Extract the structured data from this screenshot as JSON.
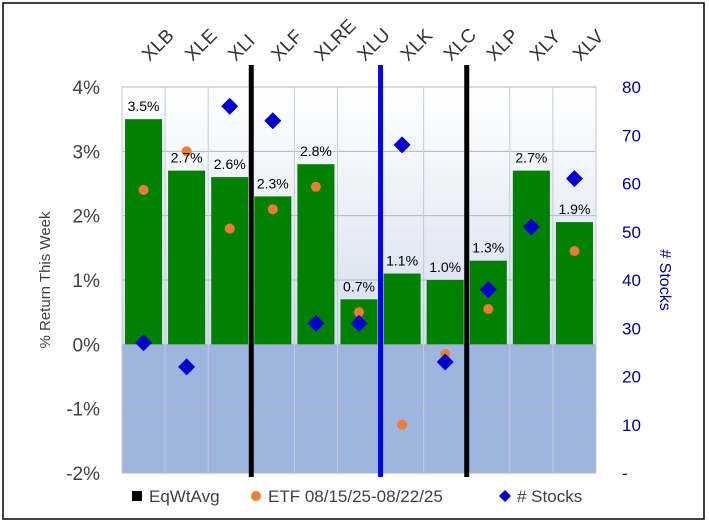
{
  "chart_data": {
    "type": "bar",
    "categories": [
      "XLB",
      "XLE",
      "XLI",
      "XLF",
      "XLRE",
      "XLU",
      "XLK",
      "XLC",
      "XLP",
      "XLY",
      "XLV"
    ],
    "series": [
      {
        "name": "EqWtAvg",
        "kind": "bar",
        "axis": "left",
        "values": [
          3.5,
          2.7,
          2.6,
          2.3,
          2.8,
          0.7,
          1.1,
          1.0,
          1.3,
          2.7,
          1.9
        ],
        "labels": [
          "3.5%",
          "2.7%",
          "2.6%",
          "2.3%",
          "2.8%",
          "0.7%",
          "1.1%",
          "1.0%",
          "1.3%",
          "2.7%",
          "1.9%"
        ]
      },
      {
        "name": "ETF 08/15/25-08/22/25",
        "kind": "dot",
        "axis": "left",
        "values": [
          2.4,
          3.0,
          1.8,
          2.1,
          2.45,
          0.5,
          -1.25,
          -0.15,
          0.55,
          null,
          1.45
        ]
      },
      {
        "name": "# Stocks",
        "kind": "diamond",
        "axis": "right",
        "values": [
          27,
          22,
          76,
          73,
          31,
          31,
          68,
          23,
          38,
          51,
          61
        ]
      }
    ],
    "xlabel": "",
    "ylabel": "% Return This Week",
    "y2label": "# Stocks",
    "ylim": [
      -2,
      4
    ],
    "y2lim": [
      0,
      80
    ],
    "yticks": [
      "-2%",
      "-1%",
      "0%",
      "1%",
      "2%",
      "3%",
      "4%"
    ],
    "y2ticks": [
      "-",
      "10",
      "20",
      "30",
      "40",
      "50",
      "60",
      "70",
      "80"
    ],
    "dividers": [
      {
        "between": [
          "XLI",
          "XLF"
        ],
        "color": "#000000"
      },
      {
        "between": [
          "XLU",
          "XLK"
        ],
        "color": "#0000ee"
      },
      {
        "between": [
          "XLC",
          "XLP"
        ],
        "color": "#000000"
      }
    ],
    "legend": [
      {
        "label": "EqWtAvg",
        "marker": "square"
      },
      {
        "label": "ETF 08/15/25-08/22/25",
        "marker": "circle"
      },
      {
        "label": "# Stocks",
        "marker": "diamond"
      }
    ],
    "legend_position": "bottom",
    "colors": {
      "bar": "#008000",
      "dot": "#ed7d31",
      "diamond": "#0000cc",
      "right_axis": "#00008b",
      "negative_bg": "#9fb5df",
      "positive_bg_top": "#ffffff",
      "positive_bg_bottom": "#d3deef"
    }
  }
}
